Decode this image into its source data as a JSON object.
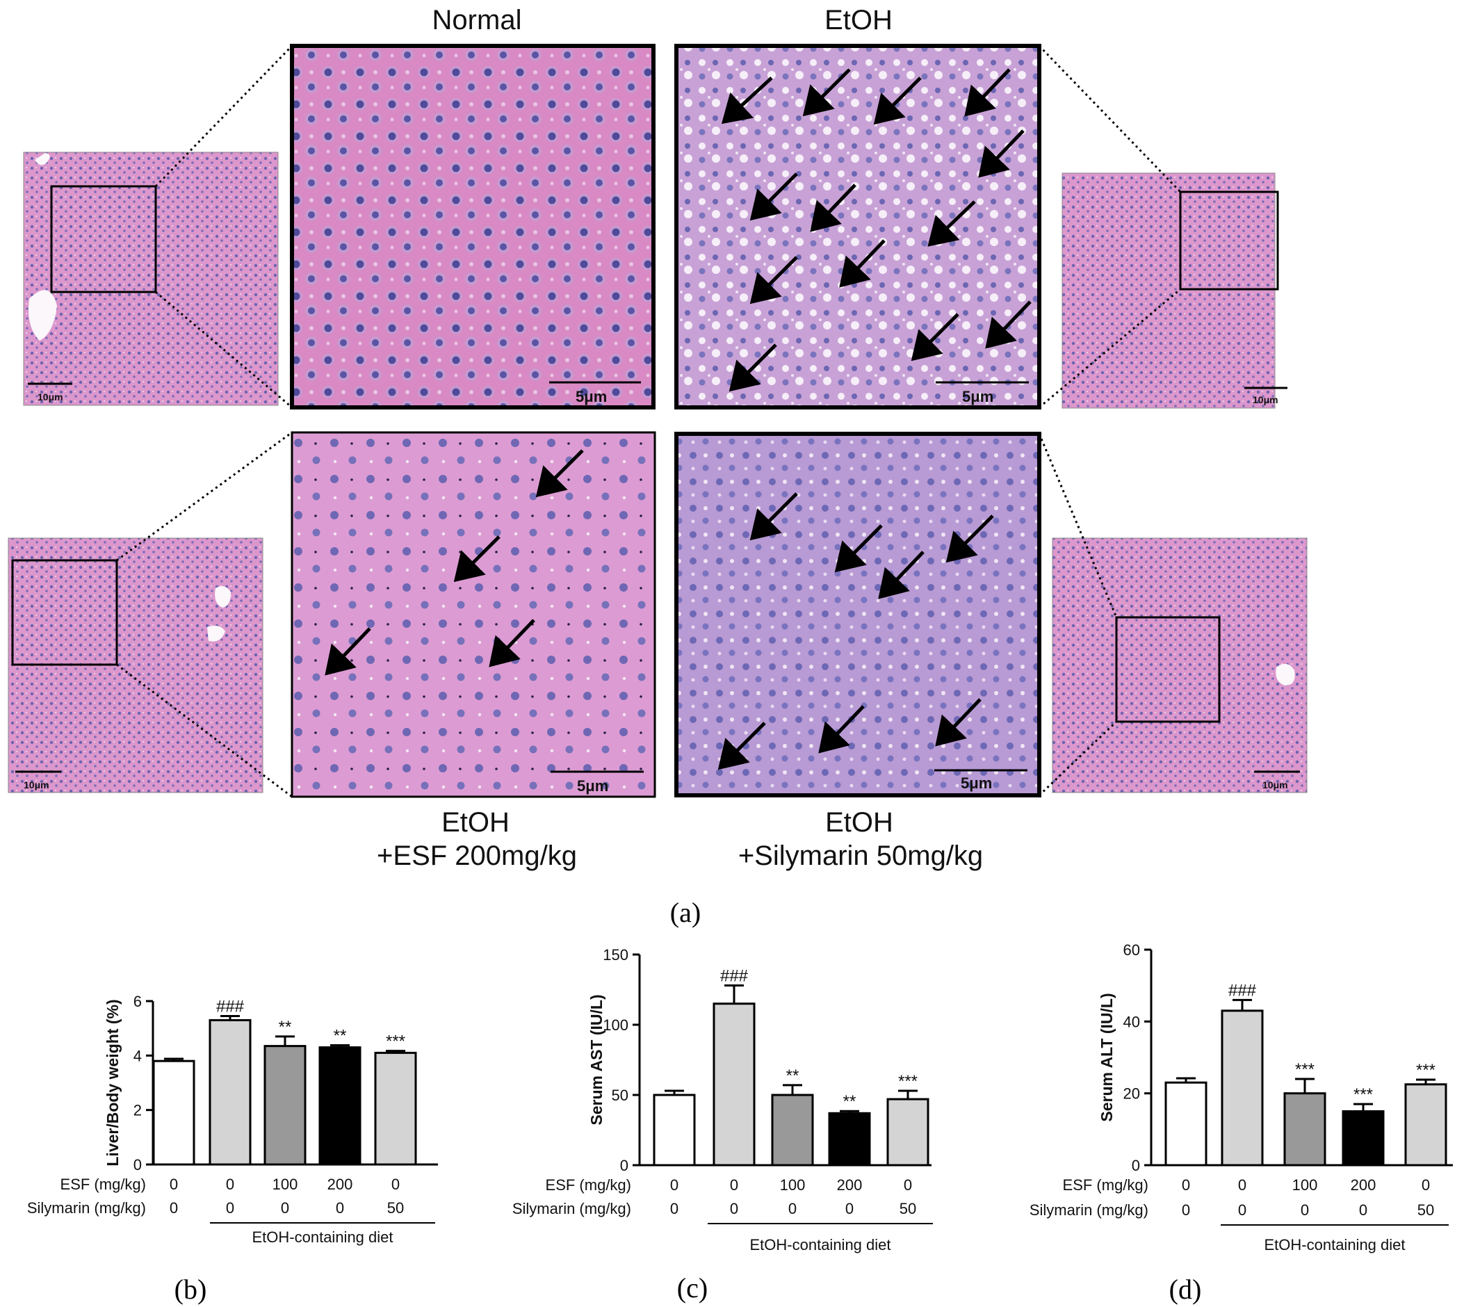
{
  "panel_a": {
    "label": "(a)",
    "conditions": {
      "normal": "Normal",
      "etoh": "EtOH",
      "esf_line1": "EtOH",
      "esf_line2": "+ESF 200mg/kg",
      "sily_line1": "EtOH",
      "sily_line2": "+Silymarin  50mg/kg"
    },
    "scale_small": "10μm",
    "scale_large": "5μm",
    "tissue_colors": {
      "background": "#d98ec8",
      "nucleus": "#5f5aa8",
      "vacuole": "#f4eef6"
    }
  },
  "groups": {
    "esf_row_label": "ESF (mg/kg)",
    "sily_row_label": "Silymarin (mg/kg)",
    "esf_values": [
      "0",
      "0",
      "100",
      "200",
      "0"
    ],
    "sily_values": [
      "0",
      "0",
      "0",
      "0",
      "50"
    ],
    "diet_label": "EtOH-containing diet"
  },
  "chart_data": [
    {
      "type": "bar",
      "panel": "(b)",
      "ylabel": "Liver/Body weight (%)",
      "ylim": [
        0,
        6
      ],
      "yticks": [
        "0",
        "2",
        "4",
        "6"
      ],
      "values": [
        3.8,
        5.3,
        4.35,
        4.3,
        4.1
      ],
      "errors": [
        0.08,
        0.15,
        0.35,
        0.08,
        0.07
      ],
      "significance": [
        "",
        "###",
        "**",
        "**",
        "***"
      ],
      "bar_colors": [
        "#ffffff",
        "#d4d4d4",
        "#999999",
        "#000000",
        "#d4d4d4"
      ]
    },
    {
      "type": "bar",
      "panel": "(c)",
      "ylabel": "Serum AST (IU/L)",
      "ylim": [
        0,
        150
      ],
      "yticks": [
        "0",
        "50",
        "100",
        "150"
      ],
      "values": [
        50,
        115,
        50,
        37,
        47
      ],
      "errors": [
        3,
        13,
        7,
        1.5,
        6
      ],
      "significance": [
        "",
        "###",
        "**",
        "**",
        "***"
      ],
      "bar_colors": [
        "#ffffff",
        "#d4d4d4",
        "#999999",
        "#000000",
        "#d4d4d4"
      ]
    },
    {
      "type": "bar",
      "panel": "(d)",
      "ylabel": "Serum ALT (IU/L)",
      "ylim": [
        0,
        60
      ],
      "yticks": [
        "0",
        "20",
        "40",
        "60"
      ],
      "values": [
        23,
        43,
        20,
        15,
        22.5
      ],
      "errors": [
        1.2,
        3,
        4,
        2,
        1.3
      ],
      "significance": [
        "",
        "###",
        "***",
        "***",
        "***"
      ],
      "bar_colors": [
        "#ffffff",
        "#d4d4d4",
        "#999999",
        "#000000",
        "#d4d4d4"
      ]
    }
  ]
}
